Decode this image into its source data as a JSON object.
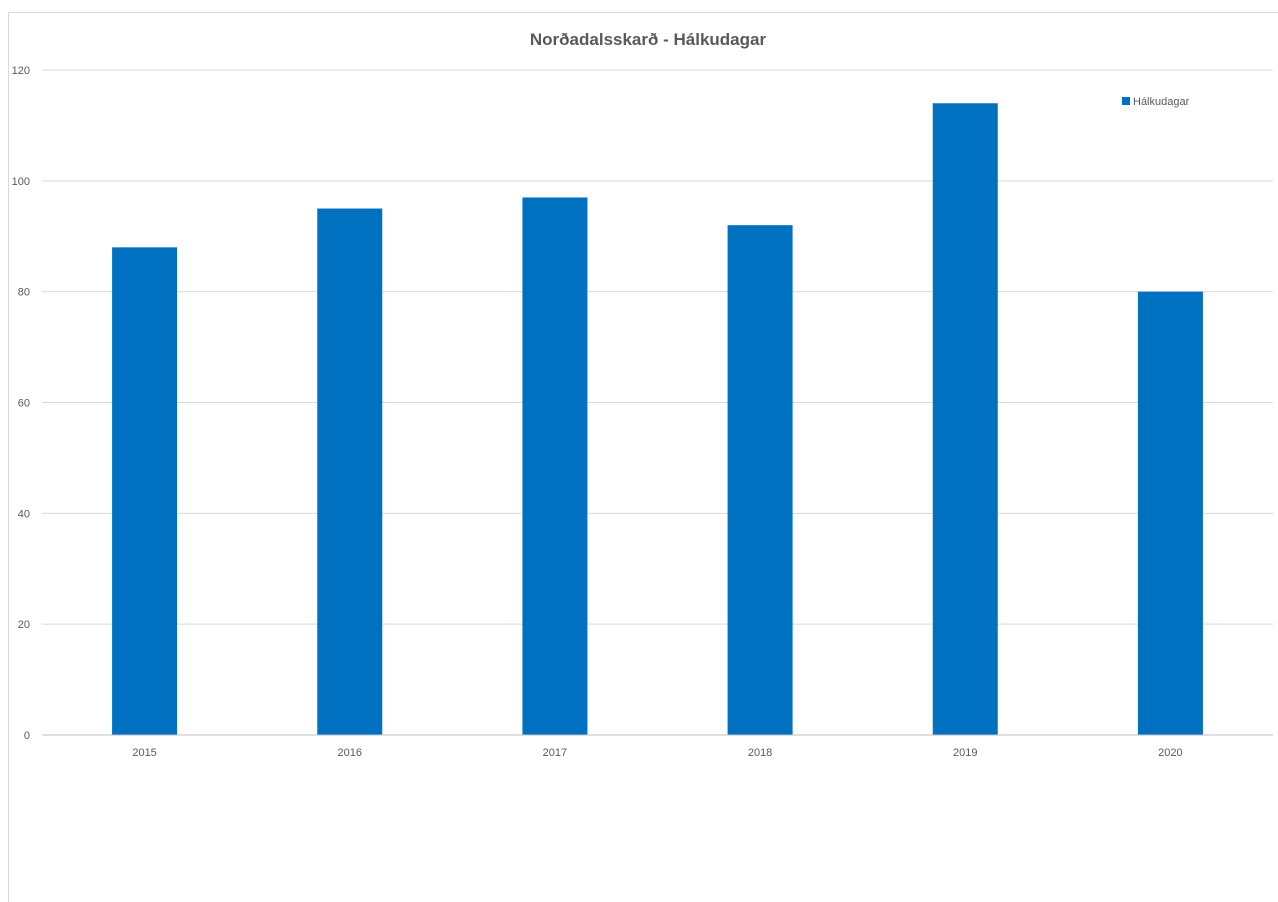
{
  "chart_data": {
    "type": "bar",
    "title": "Norðadalsskarð - Hálkudagar",
    "xlabel": "",
    "ylabel": "",
    "categories": [
      "2015",
      "2016",
      "2017",
      "2018",
      "2019",
      "2020"
    ],
    "series": [
      {
        "name": "Hálkudagar",
        "values": [
          88,
          95,
          97,
          92,
          114,
          80
        ],
        "color": "#0070c0"
      }
    ],
    "ylim": [
      0,
      120
    ],
    "yticks": [
      "0",
      "20",
      "40",
      "60",
      "80",
      "100",
      "120"
    ],
    "grid": true,
    "legend_position": "top-right"
  }
}
